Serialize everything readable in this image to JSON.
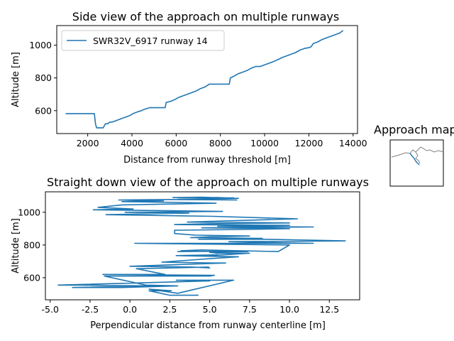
{
  "chart_data": [
    {
      "type": "line",
      "title": "Side view of the approach on multiple runways",
      "xlabel": "Distance from runway threshold [m]",
      "ylabel": "Altitude [m]",
      "xlim": [
        600,
        14200
      ],
      "ylim": [
        460,
        1120
      ],
      "xticks": [
        2000,
        4000,
        6000,
        8000,
        10000,
        12000,
        14000
      ],
      "yticks": [
        600,
        800,
        1000
      ],
      "legend_position": "upper-left",
      "color": "#1f77b4",
      "series": [
        {
          "name": "SWR32V_6917 runway 14",
          "x": [
            1000,
            2300,
            2350,
            2400,
            2700,
            2800,
            2900,
            3000,
            3100,
            3300,
            3500,
            3700,
            3900,
            4000,
            4100,
            4200,
            4300,
            4400,
            4500,
            4600,
            4800,
            5500,
            5550,
            5700,
            5900,
            6100,
            6300,
            6500,
            6700,
            6900,
            7100,
            7300,
            7500,
            8400,
            8450,
            8600,
            8800,
            9000,
            9200,
            9400,
            9600,
            9800,
            10000,
            10200,
            10400,
            10600,
            10800,
            11000,
            11200,
            11400,
            11600,
            11800,
            12000,
            12100,
            12200,
            12400,
            12600,
            12800,
            13000,
            13200,
            13400,
            13550
          ],
          "y": [
            582,
            582,
            520,
            495,
            495,
            520,
            520,
            530,
            530,
            540,
            550,
            560,
            570,
            578,
            585,
            590,
            595,
            598,
            605,
            610,
            618,
            618,
            650,
            655,
            665,
            680,
            690,
            700,
            710,
            720,
            735,
            745,
            762,
            762,
            800,
            810,
            825,
            835,
            845,
            860,
            870,
            870,
            880,
            890,
            900,
            912,
            925,
            935,
            945,
            955,
            970,
            980,
            985,
            990,
            1010,
            1020,
            1035,
            1045,
            1055,
            1065,
            1075,
            1090
          ]
        }
      ]
    },
    {
      "type": "line",
      "title": "Straight down view of the approach on multiple runways",
      "xlabel": "Perpendicular distance from runway centerline [m]",
      "ylabel": "Altitude [m]",
      "xlim": [
        -5.3,
        14.4
      ],
      "ylim": [
        465,
        1125
      ],
      "xticks": [
        -5.0,
        -2.5,
        0.0,
        2.5,
        5.0,
        7.5,
        10.0,
        12.5
      ],
      "yticks": [
        600,
        800,
        1000
      ],
      "color": "#1f77b4",
      "series": [
        {
          "x": [
            4.3,
            2.5,
            1.2,
            2.6,
            1.2,
            3.0,
            6.5,
            2.9,
            5.0,
            -4.5,
            -3.0,
            1.3,
            1.8,
            -3.6,
            -0.5,
            3.0,
            1.0,
            -1.6,
            5.0,
            5.3,
            -1.7,
            2.2,
            0.4,
            4.9,
            5.0,
            3.9,
            0.0,
            6.0,
            5.2,
            2.0,
            5.5,
            6.8,
            2.9,
            5.5,
            5.0,
            7.5,
            5.5,
            5.0,
            7.4,
            6.1,
            3.0,
            4.3,
            3.2,
            4.5,
            9.3,
            10.0,
            0.3,
            11.5,
            8.2,
            6.2,
            13.5,
            8.5,
            4.3,
            8.3,
            3.8,
            5.0,
            7.5,
            4.1,
            2.8,
            2.8,
            7.2,
            10.0,
            4.5,
            11.5,
            5.5,
            10.0,
            2.8,
            5.0,
            10.0,
            3.6,
            7.0,
            10.5,
            5.2,
            -1.5,
            3.7,
            -0.3,
            5.8,
            -2.3,
            0.2,
            -2.0,
            -0.5,
            5.4,
            3.2,
            -0.5,
            2.1,
            -0.7,
            2.5,
            6.7,
            3.0,
            6.8,
            5.5,
            2.7,
            4.5,
            6.6,
            4.0,
            6.5,
            5.0
          ],
          "y": [
            493,
            493,
            520,
            520,
            530,
            505,
            585,
            585,
            580,
            555,
            555,
            550,
            550,
            540,
            540,
            550,
            555,
            610,
            610,
            615,
            620,
            620,
            655,
            665,
            660,
            665,
            670,
            690,
            690,
            695,
            720,
            728,
            735,
            740,
            735,
            750,
            750,
            755,
            760,
            762,
            760,
            762,
            765,
            770,
            760,
            800,
            810,
            810,
            815,
            820,
            825,
            835,
            835,
            840,
            845,
            850,
            855,
            860,
            870,
            890,
            895,
            900,
            905,
            910,
            915,
            920,
            925,
            930,
            935,
            940,
            950,
            960,
            975,
            985,
            995,
            1000,
            1005,
            1015,
            1020,
            1030,
            1045,
            1055,
            1060,
            1065,
            1070,
            1075,
            1078,
            1075,
            1080,
            1085,
            1090,
            1090,
            1092,
            1085,
            1090,
            1088,
            1082
          ]
        }
      ]
    }
  ],
  "inset": {
    "title": "Approach map"
  }
}
